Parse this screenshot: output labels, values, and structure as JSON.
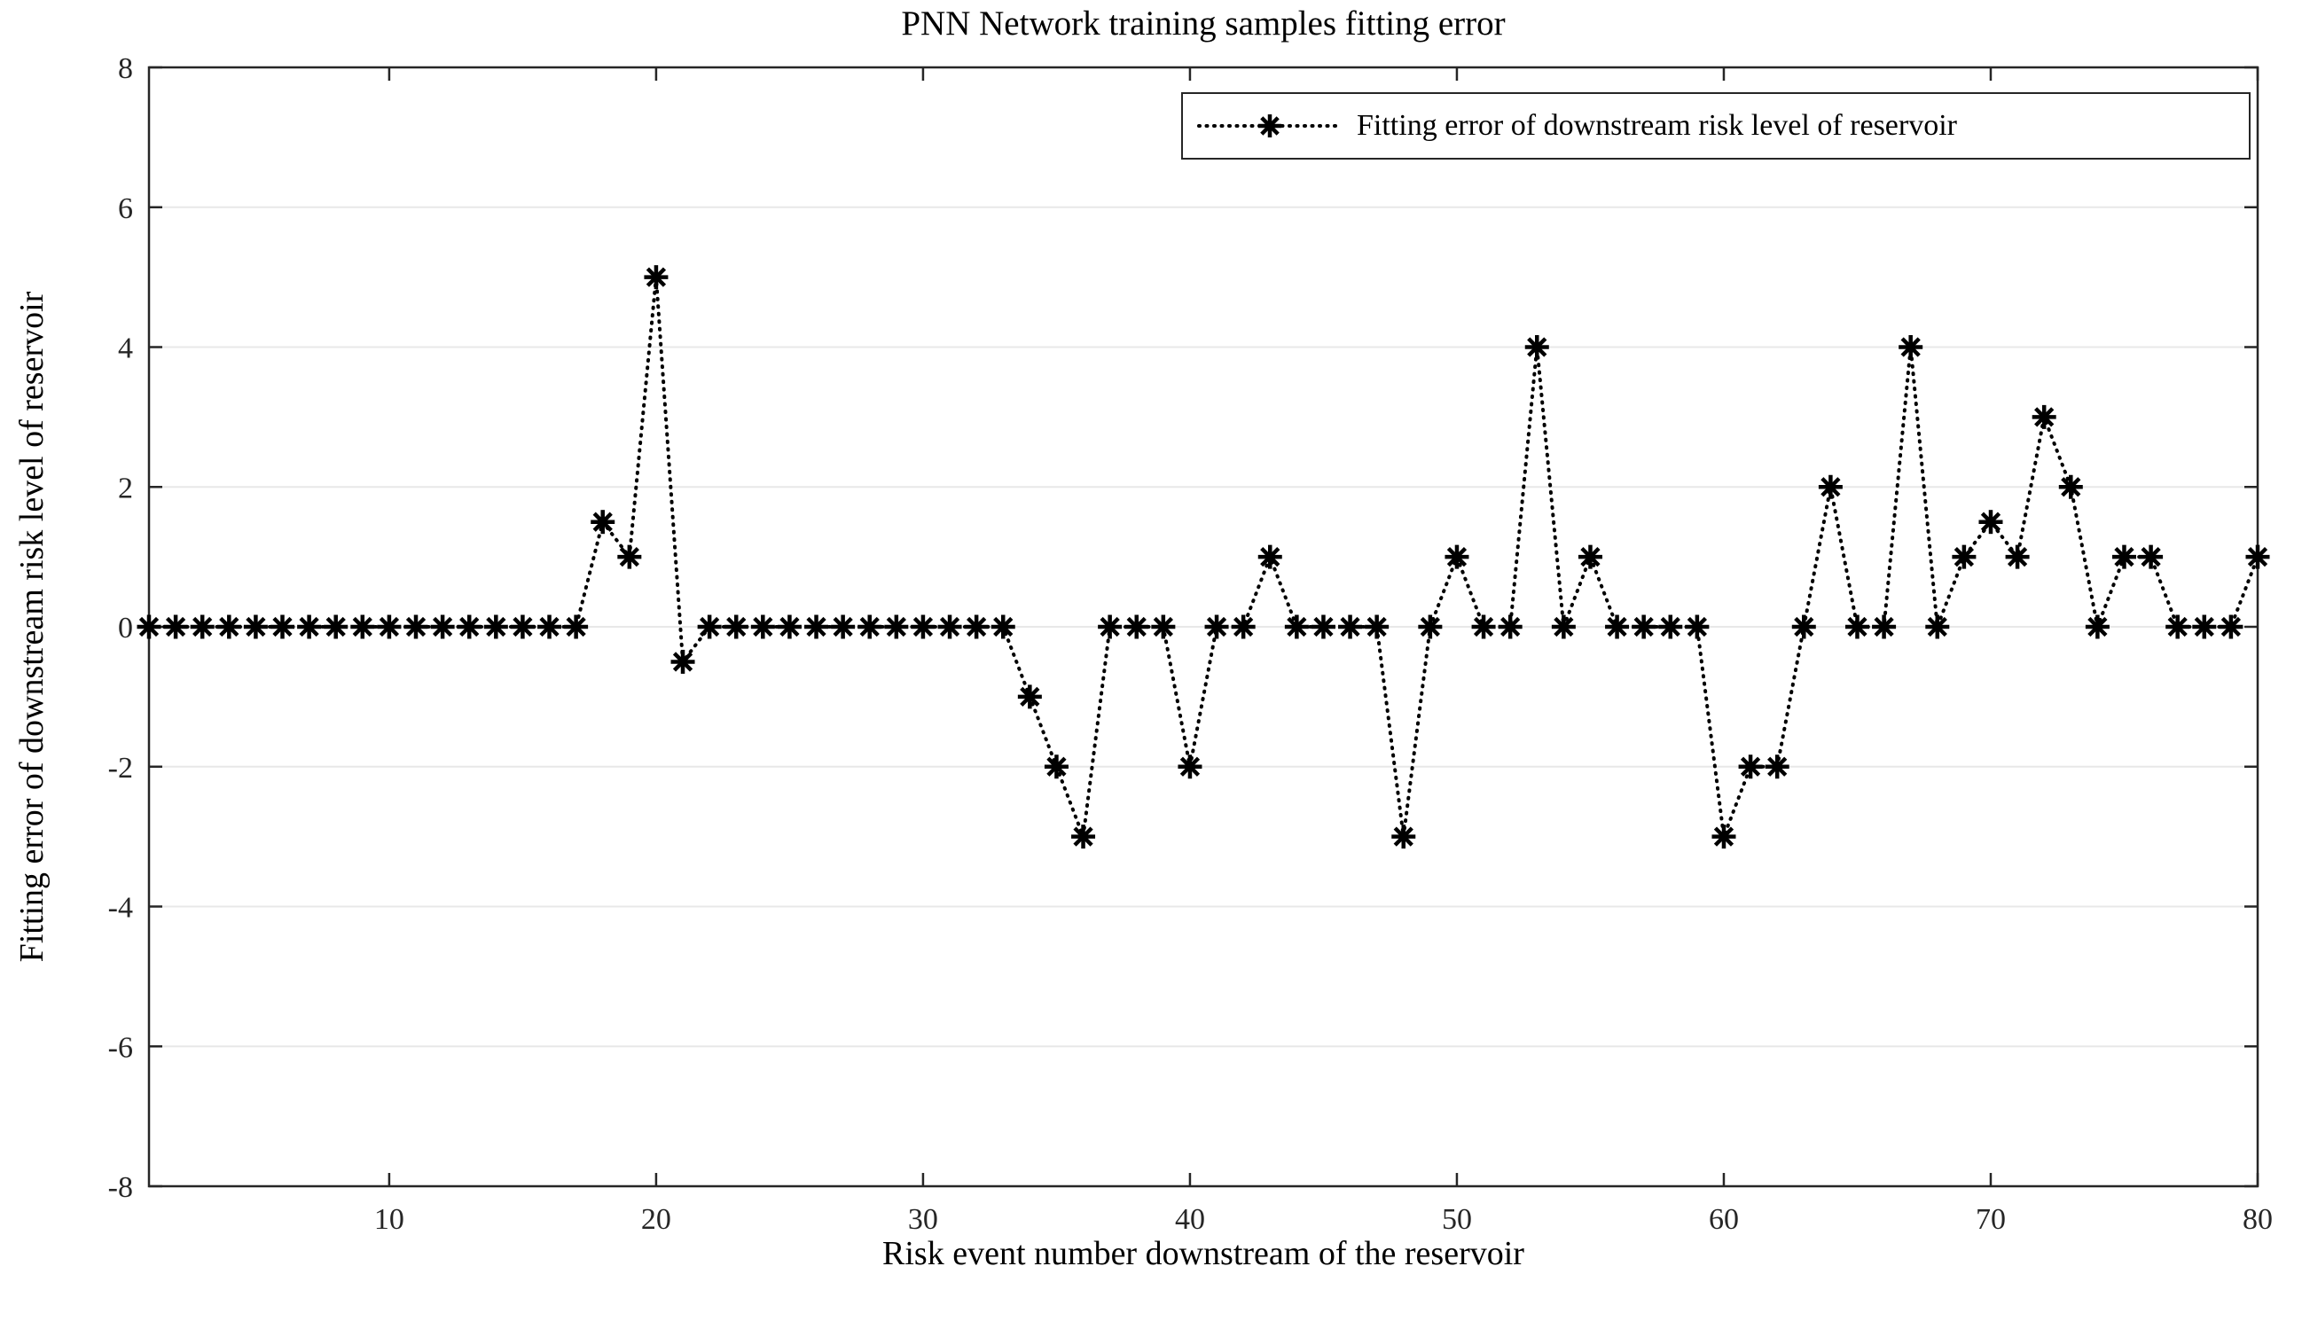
{
  "figure": {
    "title": "PNN Network training samples fitting error",
    "xlabel": "Risk event number downstream of the reservoir",
    "ylabel": "Fitting error of downstream risk level of reservoir"
  },
  "legend": {
    "label": "Fitting error of downstream risk level of reservoir",
    "marker": "asterisk-dotted-line"
  },
  "colors": {
    "line": "#000000",
    "marker": "#000000",
    "axis": "#262626",
    "grid": "#e8e8e8",
    "background": "#ffffff"
  },
  "chart_data": {
    "type": "line",
    "title": "PNN Network training samples fitting error",
    "xlabel": "Risk event number downstream of the reservoir",
    "ylabel": "Fitting error of downstream risk level of reservoir",
    "line_style": "dotted",
    "marker": "asterisk",
    "grid": "horizontal-only",
    "legend_position": "top-right-inside",
    "xlim": [
      1,
      80
    ],
    "ylim": [
      -8,
      8
    ],
    "xticks": [
      10,
      20,
      30,
      40,
      50,
      60,
      70,
      80
    ],
    "yticks": [
      -8,
      -6,
      -4,
      -2,
      0,
      2,
      4,
      6,
      8
    ],
    "series": [
      {
        "name": "Fitting error of downstream risk level of reservoir",
        "x": [
          1,
          2,
          3,
          4,
          5,
          6,
          7,
          8,
          9,
          10,
          11,
          12,
          13,
          14,
          15,
          16,
          17,
          18,
          19,
          20,
          21,
          22,
          23,
          24,
          25,
          26,
          27,
          28,
          29,
          30,
          31,
          32,
          33,
          34,
          35,
          36,
          37,
          38,
          39,
          40,
          41,
          42,
          43,
          44,
          45,
          46,
          47,
          48,
          49,
          50,
          51,
          52,
          53,
          54,
          55,
          56,
          57,
          58,
          59,
          60,
          61,
          62,
          63,
          64,
          65,
          66,
          67,
          68,
          69,
          70,
          71,
          72,
          73,
          74,
          75,
          76,
          77,
          78,
          79,
          80
        ],
        "values": [
          0,
          0,
          0,
          0,
          0,
          0,
          0,
          0,
          0,
          0,
          0,
          0,
          0,
          0,
          0,
          0,
          0,
          1.5,
          1,
          5,
          -0.5,
          0,
          0,
          0,
          0,
          0,
          0,
          0,
          0,
          0,
          0,
          0,
          0,
          -1,
          -2,
          -3,
          0,
          0,
          0,
          -2,
          0,
          0,
          1,
          0,
          0,
          0,
          0,
          -3,
          0,
          1,
          0,
          0,
          4,
          0,
          1,
          0,
          0,
          0,
          0,
          -3,
          -2,
          -2,
          0,
          2,
          0,
          0,
          4,
          0,
          1,
          1.5,
          1,
          3,
          2,
          0,
          1,
          1,
          0,
          0,
          0,
          1
        ]
      }
    ]
  }
}
